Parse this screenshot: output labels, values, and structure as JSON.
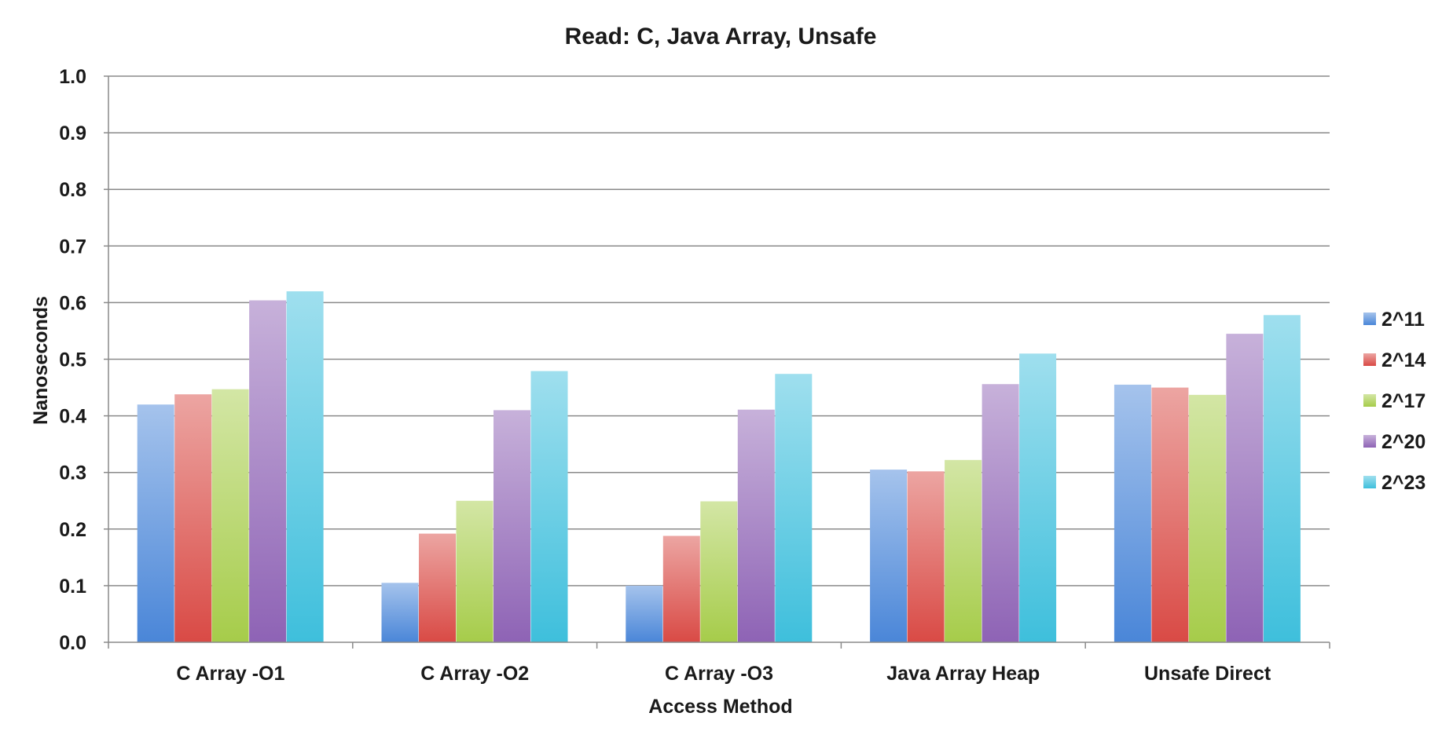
{
  "chart_data": {
    "type": "bar",
    "title": "Read: C, Java Array, Unsafe",
    "xlabel": "Access Method",
    "ylabel": "Nanoseconds",
    "ylim": [
      0,
      1.0
    ],
    "yticks": [
      "0.0",
      "0.1",
      "0.2",
      "0.3",
      "0.4",
      "0.5",
      "0.6",
      "0.7",
      "0.8",
      "0.9",
      "1.0"
    ],
    "grid": true,
    "legend_position": "right",
    "categories": [
      "C Array -O1",
      "C Array -O2",
      "C Array -O3",
      "Java Array Heap",
      "Unsafe Direct"
    ],
    "series": [
      {
        "name": "2^11",
        "color": "#4a86d8",
        "values": [
          0.42,
          0.105,
          0.1,
          0.305,
          0.455
        ]
      },
      {
        "name": "2^14",
        "color": "#d94a45",
        "values": [
          0.438,
          0.192,
          0.188,
          0.302,
          0.45
        ]
      },
      {
        "name": "2^17",
        "color": "#a6cc4a",
        "values": [
          0.447,
          0.25,
          0.249,
          0.322,
          0.437
        ]
      },
      {
        "name": "2^20",
        "color": "#8e63b5",
        "values": [
          0.604,
          0.41,
          0.411,
          0.456,
          0.545
        ]
      },
      {
        "name": "2^23",
        "color": "#3ebfdc",
        "values": [
          0.62,
          0.479,
          0.474,
          0.51,
          0.578
        ]
      }
    ]
  }
}
